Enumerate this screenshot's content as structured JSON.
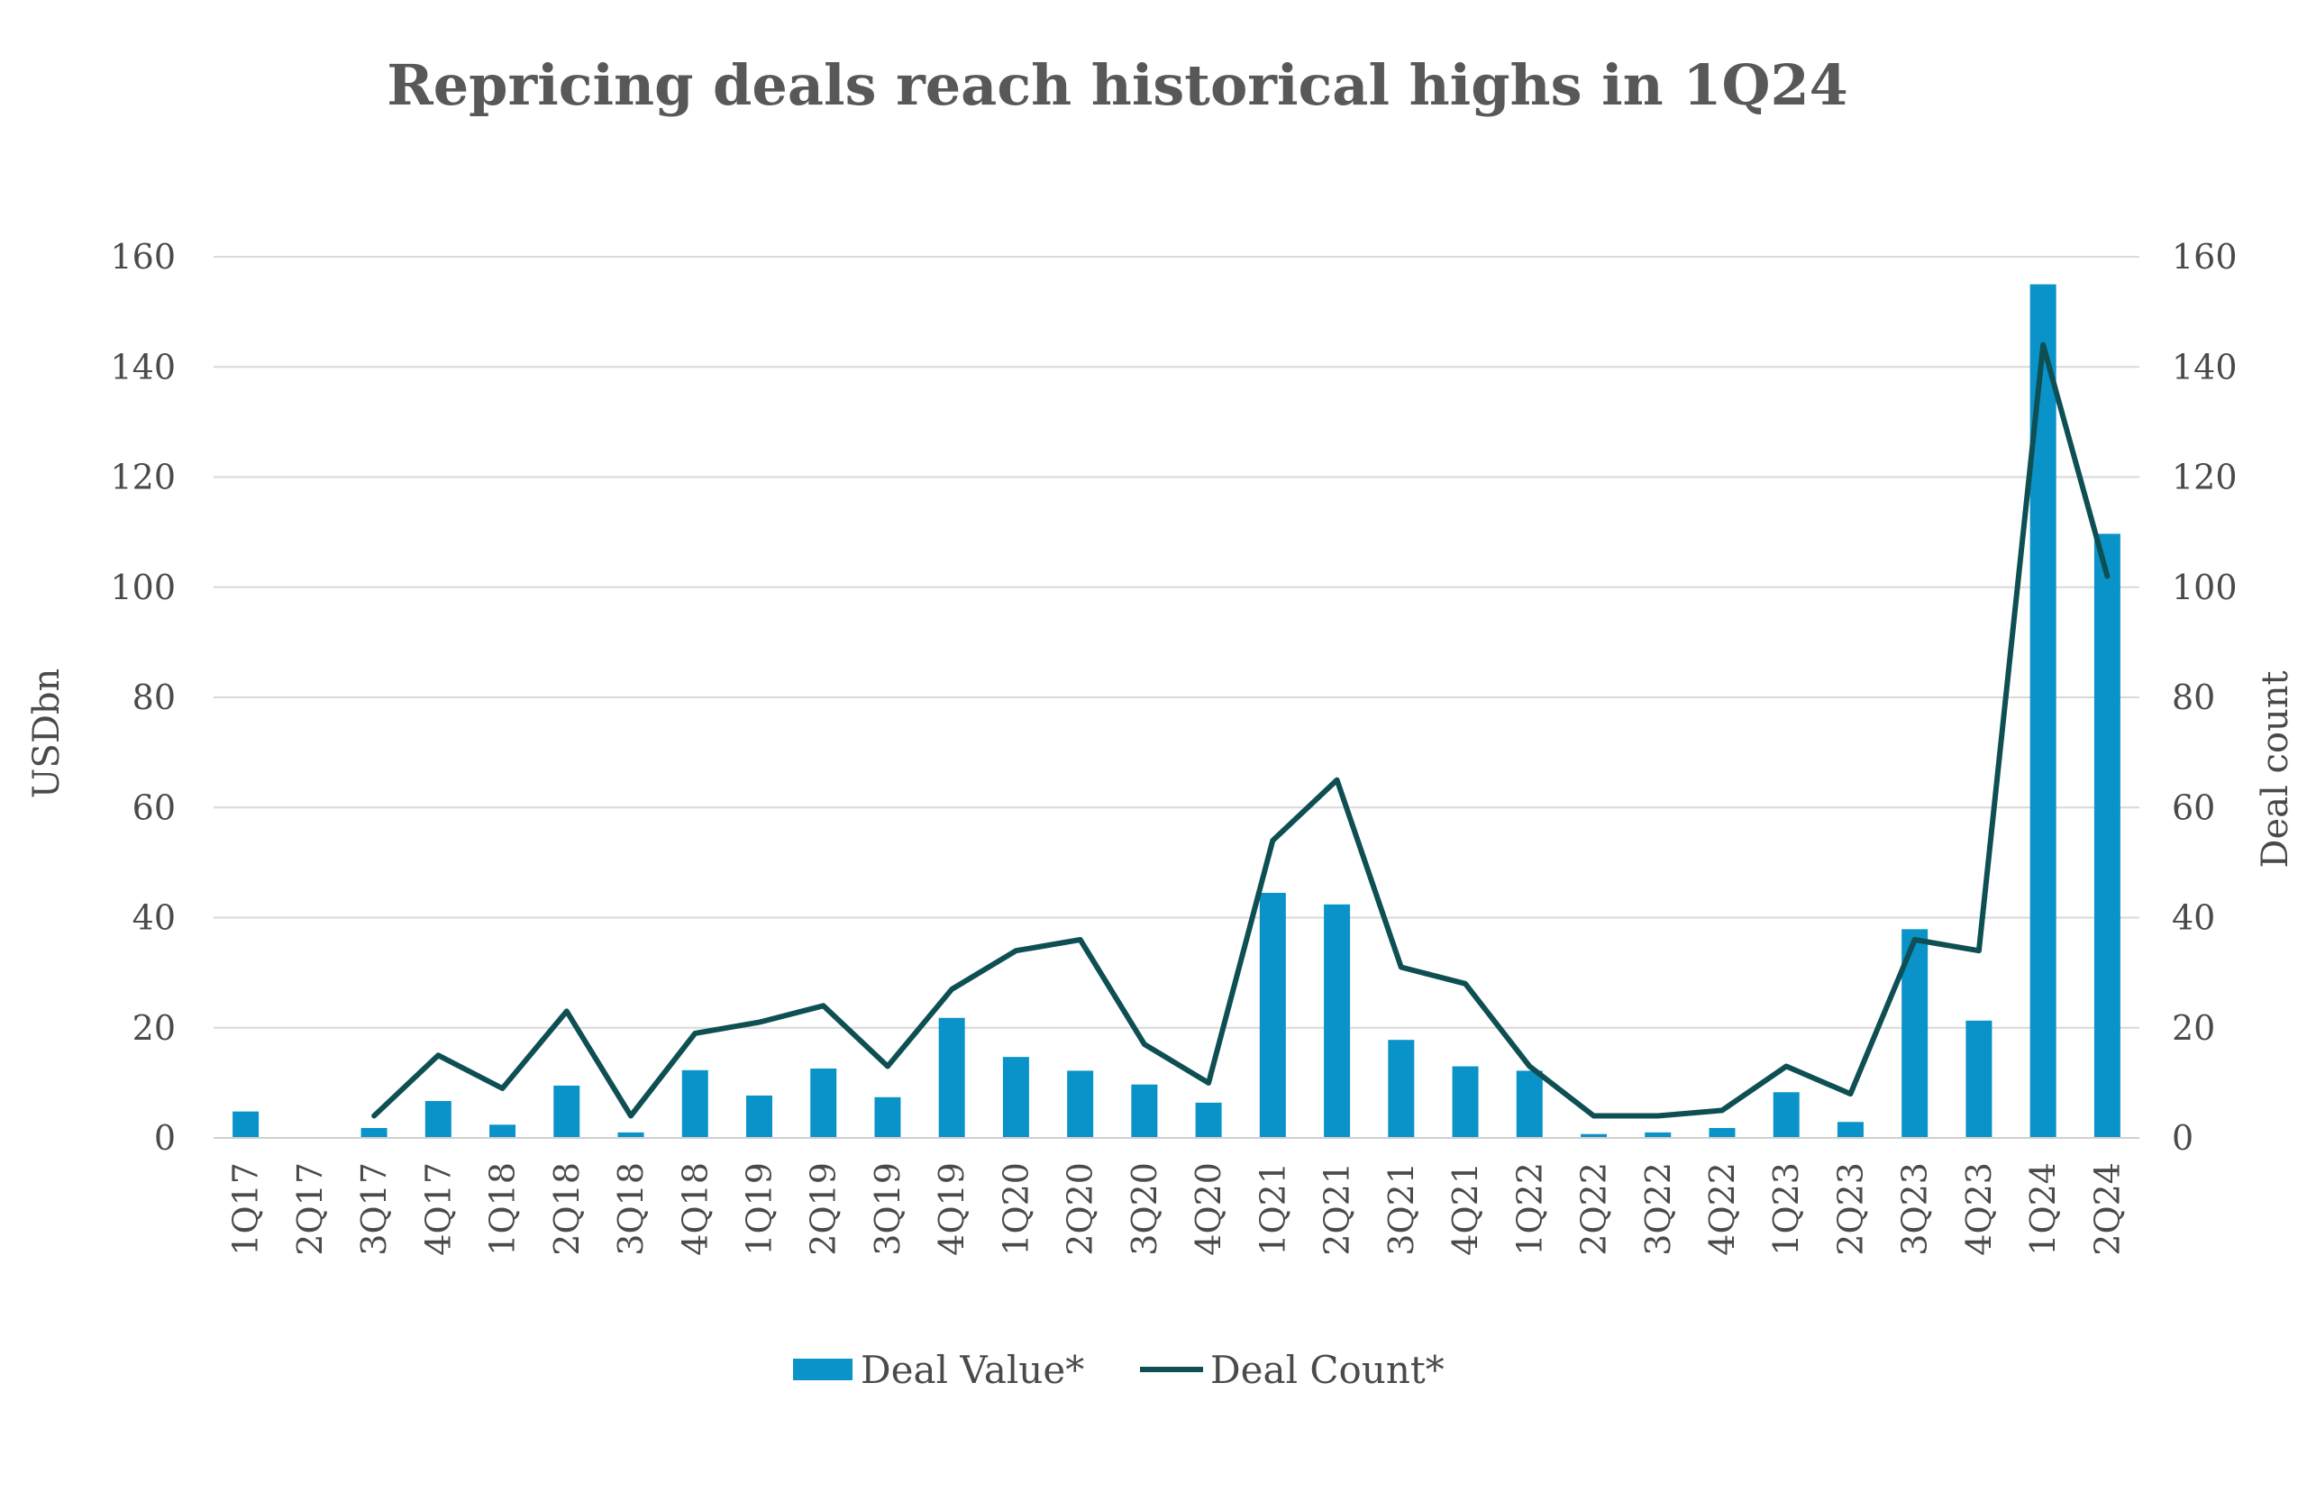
{
  "chart_data": {
    "type": "bar",
    "title": "Repricing deals reach historical highs in 1Q24",
    "categories": [
      "1Q17",
      "2Q17",
      "3Q17",
      "4Q17",
      "1Q18",
      "2Q18",
      "3Q18",
      "4Q18",
      "1Q19",
      "2Q19",
      "3Q19",
      "4Q19",
      "1Q20",
      "2Q20",
      "3Q20",
      "4Q20",
      "1Q21",
      "2Q21",
      "3Q21",
      "4Q21",
      "1Q22",
      "2Q22",
      "3Q22",
      "4Q22",
      "1Q23",
      "2Q23",
      "3Q23",
      "4Q23",
      "1Q24",
      "2Q24"
    ],
    "series": [
      {
        "name": "Deal Value*",
        "kind": "bar",
        "axis": "left",
        "color": "#0a93c8",
        "values": [
          4.8,
          0,
          1.8,
          6.7,
          2.4,
          9.5,
          1.0,
          12.3,
          7.7,
          12.6,
          7.4,
          21.8,
          14.7,
          12.2,
          9.7,
          6.4,
          44.5,
          42.4,
          17.8,
          13.0,
          12.2,
          0.7,
          1.0,
          1.8,
          8.3,
          2.9,
          37.9,
          21.3,
          155.0,
          109.7
        ]
      },
      {
        "name": "Deal Count*",
        "kind": "line",
        "axis": "right",
        "color": "#0e4f53",
        "values": [
          null,
          null,
          4,
          15,
          9,
          23,
          4,
          19,
          21,
          24,
          13,
          27,
          34,
          36,
          17,
          10,
          54,
          65,
          31,
          28,
          13,
          4,
          4,
          5,
          13,
          8,
          36,
          34,
          144,
          102
        ]
      }
    ],
    "ylabel": "USDbn",
    "y2label": "Deal count",
    "ylim": [
      0,
      160
    ],
    "y2lim": [
      0,
      160
    ],
    "yticks": [
      "0",
      "20",
      "40",
      "60",
      "80",
      "100",
      "120",
      "140",
      "160"
    ],
    "y2ticks": [
      "0",
      "20",
      "40",
      "60",
      "80",
      "100",
      "120",
      "140",
      "160"
    ],
    "grid": true,
    "legend_position": "bottom"
  }
}
